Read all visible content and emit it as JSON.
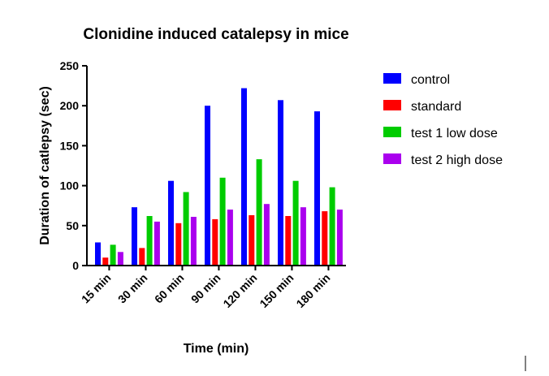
{
  "chart_data": {
    "type": "bar",
    "title": "Clonidine induced catalepsy in mice",
    "xlabel": "Time (min)",
    "ylabel": "Duration of catlepsy (sec)",
    "ylim": [
      0,
      250
    ],
    "yticks": [
      0,
      50,
      100,
      150,
      200,
      250
    ],
    "categories": [
      "15 min",
      "30 min",
      "60 min",
      "90 min",
      "120 min",
      "150 min",
      "180 min"
    ],
    "legend_position": "right",
    "grid": false,
    "series": [
      {
        "name": "control",
        "color": "#0000ff",
        "values": [
          29,
          73,
          106,
          200,
          222,
          207,
          193
        ]
      },
      {
        "name": "standard",
        "color": "#ff0000",
        "values": [
          10,
          22,
          53,
          58,
          63,
          62,
          68
        ]
      },
      {
        "name": "test 1 low dose",
        "color": "#00cc00",
        "values": [
          26,
          62,
          92,
          110,
          133,
          106,
          98
        ]
      },
      {
        "name": "test 2 high dose",
        "color": "#aa00ee",
        "values": [
          17,
          55,
          61,
          70,
          77,
          73,
          70
        ]
      }
    ]
  }
}
